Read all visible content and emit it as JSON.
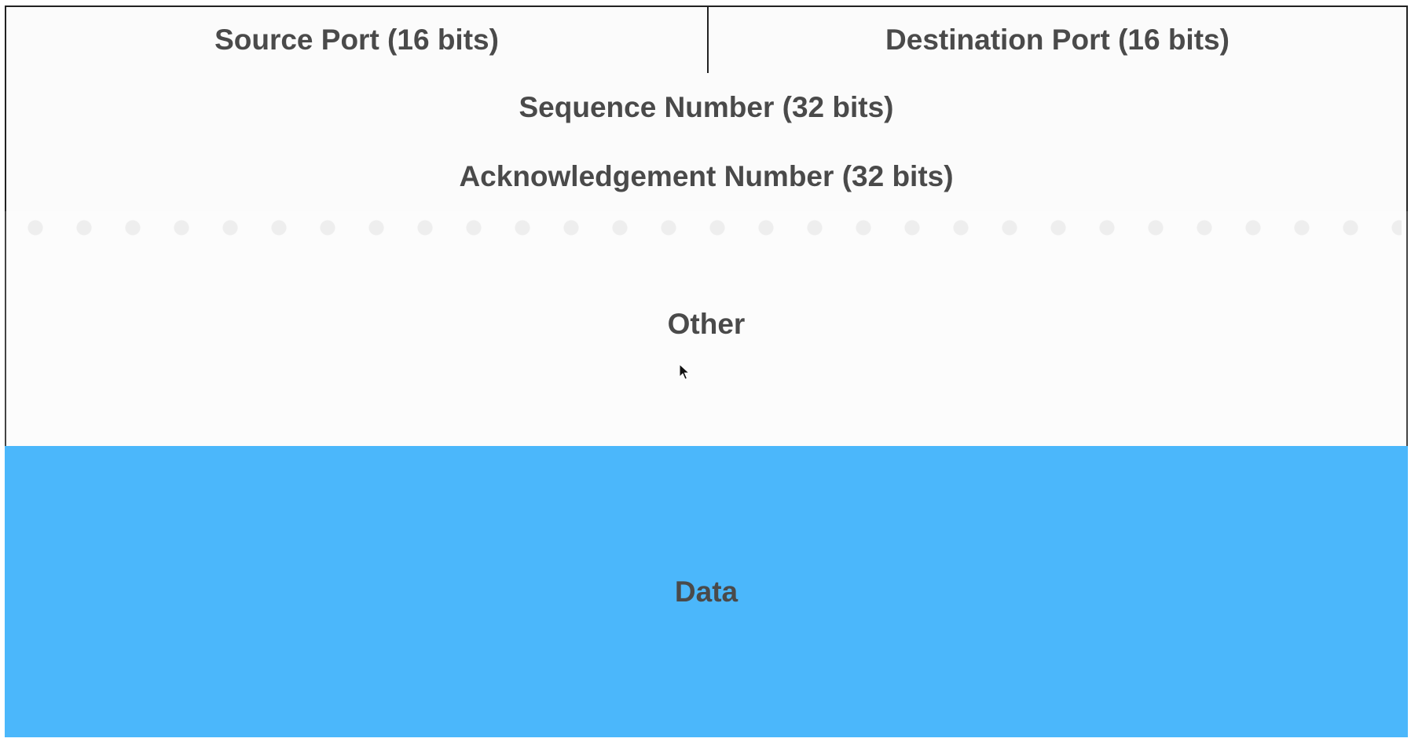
{
  "diagram": {
    "source_port": "Source Port (16 bits)",
    "destination_port": "Destination Port (16 bits)",
    "sequence_number": "Sequence Number (32 bits)",
    "acknowledgement_number": "Acknowledgement Number (32 bits)",
    "other": "Other",
    "data": "Data"
  },
  "colors": {
    "data_fill": "#4bb7fb",
    "border": "#222222",
    "text": "#4a4a4a"
  },
  "icons": {
    "cursor": "mouse-pointer-icon"
  }
}
